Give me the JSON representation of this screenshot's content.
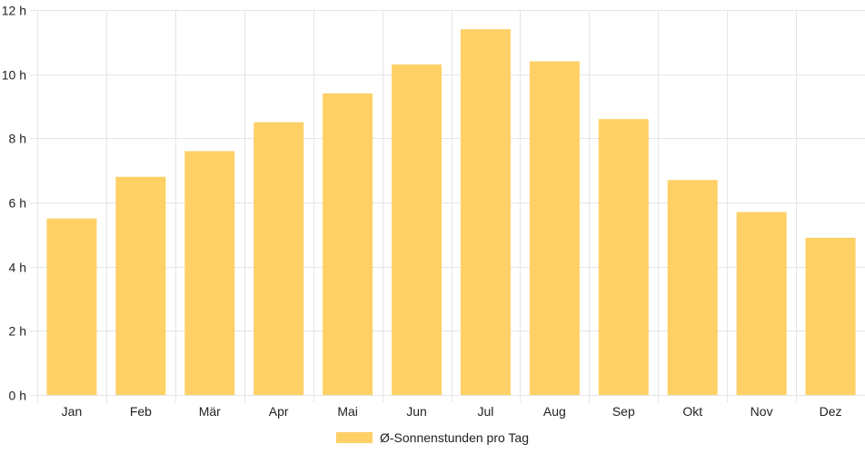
{
  "chart_data": {
    "type": "bar",
    "categories": [
      "Jan",
      "Feb",
      "Mär",
      "Apr",
      "Mai",
      "Jun",
      "Jul",
      "Aug",
      "Sep",
      "Okt",
      "Nov",
      "Dez"
    ],
    "series": [
      {
        "name": "Ø-Sonnenstunden pro Tag",
        "values": [
          5.5,
          6.8,
          7.6,
          8.5,
          9.4,
          10.3,
          11.4,
          10.4,
          8.6,
          6.7,
          5.7,
          4.9
        ]
      }
    ],
    "ylim": [
      0,
      12
    ],
    "yticks": [
      0,
      2,
      4,
      6,
      8,
      10,
      12
    ],
    "ytick_labels": [
      "0 h",
      "2 h",
      "4 h",
      "6 h",
      "8 h",
      "10 h",
      "12 h"
    ],
    "grid": true,
    "legend_position": "bottom",
    "bar_color": "#fed065",
    "grid_color": "#e5e5e5"
  }
}
